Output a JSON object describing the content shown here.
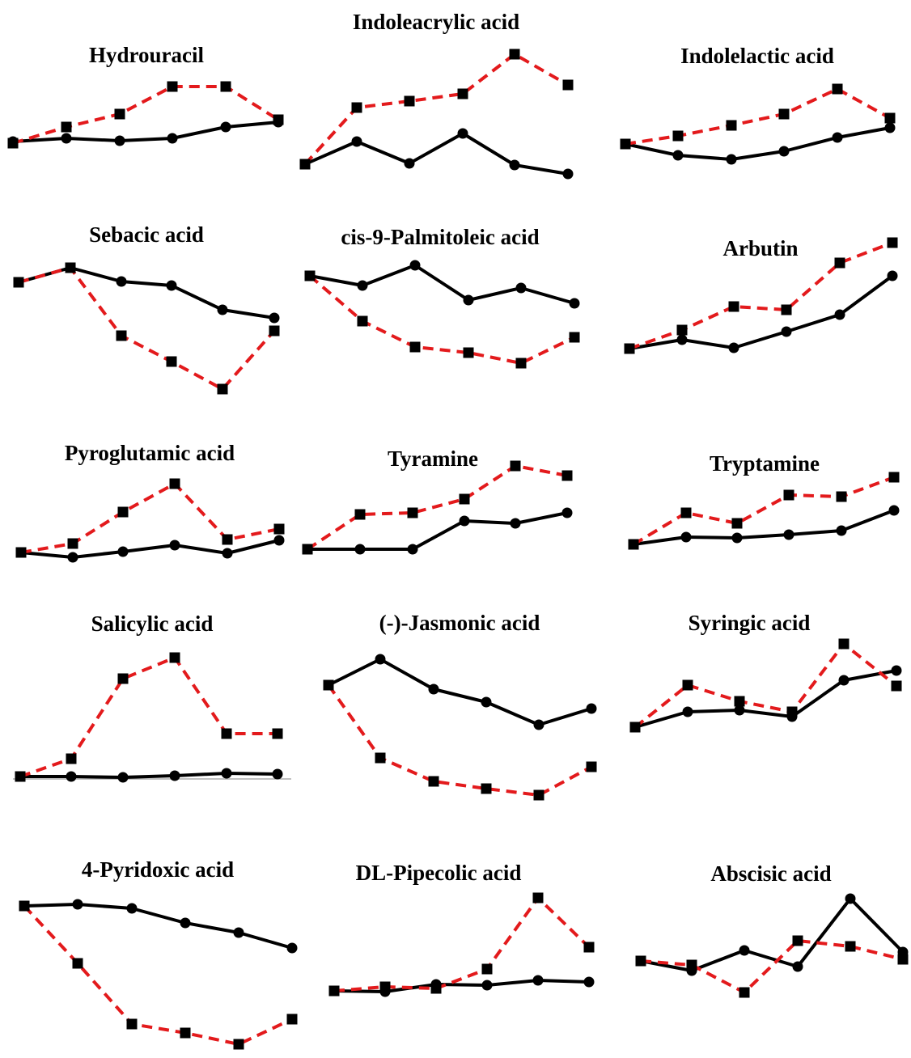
{
  "colors": {
    "series_a": "#000000",
    "series_b": "#e31a1c"
  },
  "chart_data": [
    {
      "type": "line",
      "title": "Hydrouracil",
      "series": [
        {
          "values": [
            175,
            171,
            174,
            171,
            157,
            151
          ]
        },
        {
          "values": [
            177,
            157,
            141,
            107,
            107,
            148
          ]
        }
      ]
    },
    {
      "type": "line",
      "title": "Indoleacrylic acid",
      "series": [
        {
          "values": [
            203,
            175,
            202,
            165,
            204,
            215
          ]
        },
        {
          "values": [
            203,
            133,
            125,
            116,
            67,
            105
          ]
        }
      ]
    },
    {
      "type": "line",
      "title": "Indolelactic acid",
      "series": [
        {
          "values": [
            178,
            192,
            197,
            187,
            170,
            158
          ]
        },
        {
          "values": [
            178,
            168,
            155,
            141,
            110,
            146
          ]
        }
      ]
    },
    {
      "type": "line",
      "title": "Sebacic acid",
      "series": [
        {
          "values": [
            349,
            331,
            348,
            353,
            383,
            393
          ]
        },
        {
          "values": [
            349,
            331,
            415,
            447,
            481,
            409
          ]
        }
      ]
    },
    {
      "type": "line",
      "title": "cis-9-Palmitoleic acid",
      "series": [
        {
          "values": [
            341,
            353,
            328,
            371,
            356,
            375
          ]
        },
        {
          "values": [
            341,
            397,
            429,
            436,
            449,
            417
          ]
        }
      ]
    },
    {
      "type": "line",
      "title": "Arbutin",
      "series": [
        {
          "values": [
            431,
            420,
            430,
            410,
            389,
            341
          ]
        },
        {
          "values": [
            431,
            408,
            379,
            383,
            325,
            300
          ]
        }
      ]
    },
    {
      "type": "line",
      "title": "Pyroglutamic acid",
      "series": [
        {
          "values": [
            683,
            689,
            682,
            674,
            684,
            668
          ]
        },
        {
          "values": [
            683,
            672,
            633,
            598,
            667,
            654
          ]
        }
      ]
    },
    {
      "type": "line",
      "title": "Tyramine",
      "series": [
        {
          "values": [
            679,
            679,
            679,
            644,
            647,
            634
          ]
        },
        {
          "values": [
            679,
            636,
            634,
            617,
            576,
            588
          ]
        }
      ]
    },
    {
      "type": "line",
      "title": "Tryptamine",
      "series": [
        {
          "values": [
            673,
            664,
            665,
            661,
            656,
            631
          ]
        },
        {
          "values": [
            673,
            634,
            647,
            612,
            614,
            590
          ]
        }
      ]
    },
    {
      "type": "line",
      "title": "Salicylic acid",
      "series": [
        {
          "values": [
            960,
            960,
            961,
            959,
            956,
            957
          ]
        },
        {
          "values": [
            960,
            938,
            839,
            813,
            907,
            907
          ]
        }
      ]
    },
    {
      "type": "line",
      "title": "(-)-Jasmonic acid",
      "series": [
        {
          "values": [
            847,
            815,
            852,
            868,
            896,
            876
          ]
        },
        {
          "values": [
            847,
            937,
            966,
            975,
            983,
            948
          ]
        }
      ]
    },
    {
      "type": "line",
      "title": "Syringic acid",
      "series": [
        {
          "values": [
            899,
            880,
            878,
            886,
            841,
            829
          ]
        },
        {
          "values": [
            899,
            847,
            867,
            880,
            796,
            848
          ]
        }
      ]
    },
    {
      "type": "line",
      "title": "4-Pyridoxic acid",
      "series": [
        {
          "values": [
            1120,
            1118,
            1123,
            1141,
            1153,
            1172
          ]
        },
        {
          "values": [
            1120,
            1191,
            1266,
            1277,
            1291,
            1260
          ]
        }
      ]
    },
    {
      "type": "line",
      "title": "DL-Pipecolic acid",
      "series": [
        {
          "values": [
            1225,
            1226,
            1217,
            1218,
            1212,
            1214
          ]
        },
        {
          "values": [
            1225,
            1220,
            1222,
            1198,
            1110,
            1171
          ]
        }
      ]
    },
    {
      "type": "line",
      "title": "Abscisic acid",
      "series": [
        {
          "values": [
            1188,
            1200,
            1175,
            1195,
            1111,
            1177
          ]
        },
        {
          "values": [
            1188,
            1193,
            1227,
            1163,
            1170,
            1186
          ]
        }
      ]
    }
  ]
}
